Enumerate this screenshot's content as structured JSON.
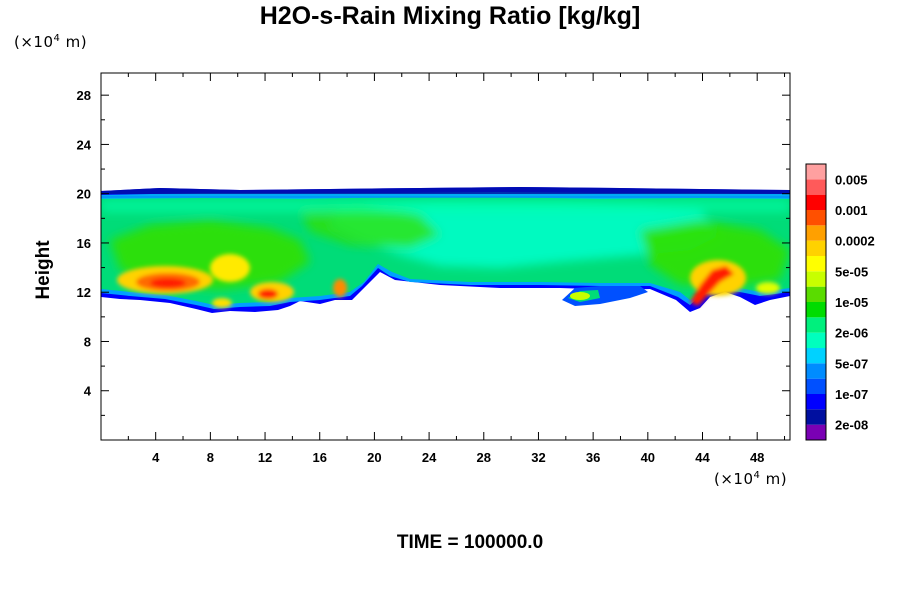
{
  "chart_data": {
    "type": "heatmap",
    "title": "H2O-s-Rain Mixing Ratio [kg/kg]",
    "ylabel": "Height",
    "xlabel": "",
    "x_unit": {
      "prefix": "(×10",
      "exp": "4",
      "suffix": " m)"
    },
    "y_unit": {
      "prefix": "(×10",
      "exp": "4",
      "suffix": " m)"
    },
    "xlim": [
      0,
      50.4
    ],
    "ylim": [
      0,
      29.8
    ],
    "x_ticks": [
      4,
      8,
      12,
      16,
      20,
      24,
      28,
      32,
      36,
      40,
      44,
      48
    ],
    "y_ticks": [
      4,
      8,
      12,
      16,
      20,
      24,
      28
    ],
    "colorbar": {
      "colors": [
        "#7a00b4",
        "#000fa0",
        "#0000ff",
        "#0050ff",
        "#008cff",
        "#00d2ff",
        "#00ffbe",
        "#00f07d",
        "#00dc00",
        "#5adc00",
        "#c8ff00",
        "#ffff00",
        "#ffd200",
        "#ffa000",
        "#ff5000",
        "#ff0000",
        "#ff5a5a",
        "#ffa0a0"
      ],
      "labels": [
        "2e-08",
        "1e-07",
        "5e-07",
        "2e-06",
        "1e-05",
        "5e-05",
        "0.0002",
        "0.001",
        "0.005"
      ]
    },
    "field_description": {
      "layer_bottom_km_x1e4": 11.5,
      "layer_top_km_x1e4": 20.2,
      "dominant_level": "2e-06 to 1e-05",
      "maxima": [
        {
          "x": 5,
          "y": 12.7,
          "level": "0.001"
        },
        {
          "x": 12,
          "y": 12,
          "level": "0.001"
        },
        {
          "x": 44.2,
          "y": 12.8,
          "level": "0.001"
        }
      ]
    }
  },
  "footer": {
    "time_label": "TIME = ",
    "time_value": "100000.0"
  }
}
